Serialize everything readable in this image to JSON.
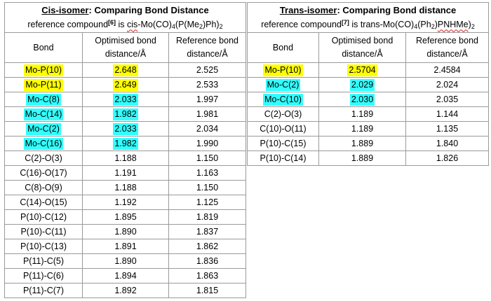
{
  "colors": {
    "yellow": "#ffff00",
    "cyan": "#33ffff"
  },
  "cis": {
    "title_em": "Cis-isomer",
    "title_rest": ":  Comparing Bond Distance",
    "ref_prefix": "reference compound",
    "ref_num": "[6]",
    "ref_is": " is ",
    "ref_cis": "cis",
    "ref_mid": "-Mo(CO)",
    "ref_sub1": "4",
    "ref_mid2": "(P(Me",
    "ref_sub2": "2",
    "ref_mid3": ")Ph)",
    "ref_sub3": "2",
    "headers": [
      "Bond",
      "Optimised bond distance/Å",
      "Reference bond distance/Å"
    ],
    "rows": [
      {
        "bond": "Mo-P(10)",
        "opt": "2.648",
        "ref": "2.525",
        "bond_hl": "yellow",
        "opt_hl": "yellow"
      },
      {
        "bond": "Mo-P(11)",
        "opt": "2.649",
        "ref": "2.533",
        "bond_hl": "yellow",
        "opt_hl": "yellow"
      },
      {
        "bond": "Mo-C(8)",
        "opt": "2.033",
        "ref": "1.997",
        "bond_hl": "cyan",
        "opt_hl": "cyan"
      },
      {
        "bond": "Mo-C(14)",
        "opt": "1.982",
        "ref": "1.981",
        "bond_hl": "cyan",
        "opt_hl": "cyan"
      },
      {
        "bond": "Mo-C(2)",
        "opt": "2.033",
        "ref": "2.034",
        "bond_hl": "cyan",
        "opt_hl": "cyan"
      },
      {
        "bond": "Mo-C(16)",
        "opt": "1.982",
        "ref": "1.990",
        "bond_hl": "cyan",
        "opt_hl": "cyan"
      },
      {
        "bond": "C(2)-O(3)",
        "opt": "1.188",
        "ref": "1.150"
      },
      {
        "bond": "C(16)-O(17)",
        "opt": "1.191",
        "ref": "1.163"
      },
      {
        "bond": "C(8)-O(9)",
        "opt": "1.188",
        "ref": "1.150"
      },
      {
        "bond": "C(14)-O(15)",
        "opt": "1.192",
        "ref": "1.125"
      },
      {
        "bond": "P(10)-C(12)",
        "opt": "1.895",
        "ref": "1.819"
      },
      {
        "bond": "P(10)-C(11)",
        "opt": "1.890",
        "ref": "1.837"
      },
      {
        "bond": "P(10)-C(13)",
        "opt": "1.891",
        "ref": "1.862"
      },
      {
        "bond": "P(11)-C(5)",
        "opt": "1.890",
        "ref": "1.836"
      },
      {
        "bond": "P(11)-C(6)",
        "opt": "1.894",
        "ref": "1.863"
      },
      {
        "bond": "P(11)-C(7)",
        "opt": "1.892",
        "ref": "1.815"
      }
    ]
  },
  "trans": {
    "title_em": "Trans-isomer",
    "title_rest": ":  Comparing Bond distance",
    "ref_prefix": "reference compound",
    "ref_num": "[7]",
    "ref_is": " is trans-Mo(CO)",
    "ref_sub1": "4",
    "ref_mid": "(Ph",
    "ref_sub2": "2",
    "ref_mid2": ")",
    "ref_wavy": "PNHMe",
    "ref_mid3": ")",
    "ref_sub3": "2",
    "headers": [
      "Bond",
      "Optimised bond distance/Å",
      "Reference bond distance/Å"
    ],
    "rows": [
      {
        "bond": "Mo-P(10)",
        "opt": "2.5704",
        "ref": "2.4584",
        "bond_hl": "yellow",
        "opt_hl": "yellow"
      },
      {
        "bond": "Mo-C(2)",
        "opt": "2.029",
        "ref": "2.024",
        "bond_hl": "cyan",
        "opt_hl": "cyan"
      },
      {
        "bond": "Mo-C(10)",
        "opt": "2.030",
        "ref": "2.035",
        "bond_hl": "cyan",
        "opt_hl": "cyan"
      },
      {
        "bond": "C(2)-O(3)",
        "opt": "1.189",
        "ref": "1.144"
      },
      {
        "bond": "C(10)-O(11)",
        "opt": "1.189",
        "ref": "1.135"
      },
      {
        "bond": "P(10)-C(15)",
        "opt": "1.889",
        "ref": "1.840"
      },
      {
        "bond": "P(10)-C(14)",
        "opt": "1.889",
        "ref": "1.826"
      }
    ]
  }
}
